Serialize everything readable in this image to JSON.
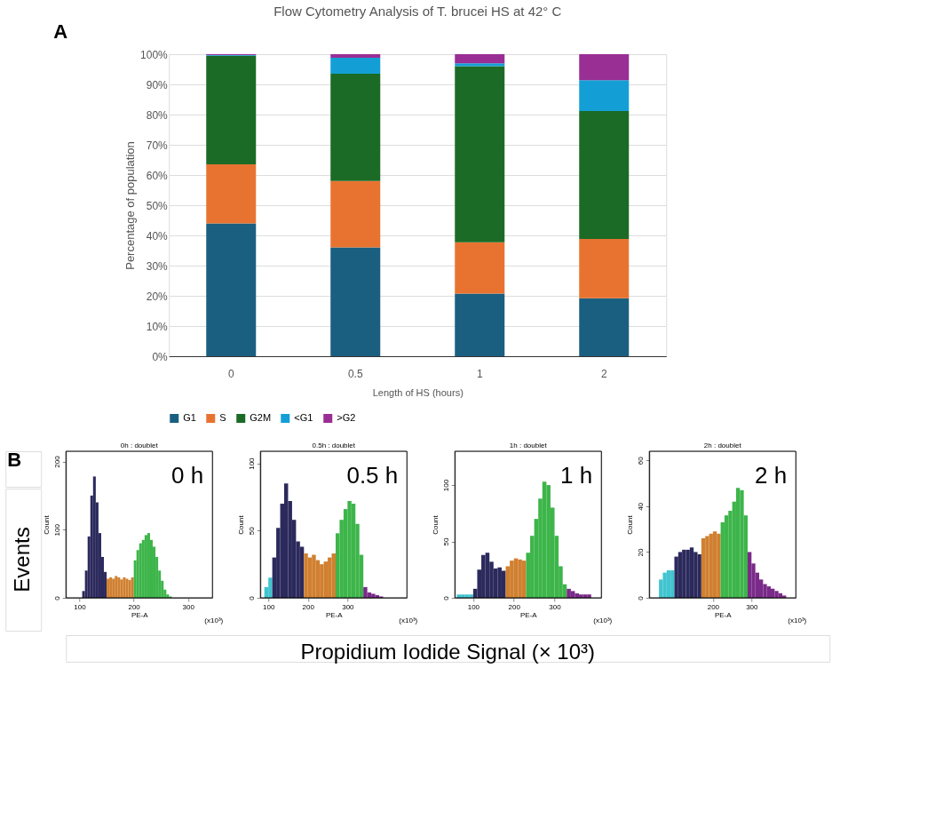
{
  "chart_data": [
    {
      "type": "bar",
      "stacked": true,
      "title": "Flow Cytometry Analysis of T. brucei HS at 42° C",
      "xlabel": "Length of HS (hours)",
      "ylabel": "Percentage of population",
      "categories": [
        "0",
        "0.5",
        "1",
        "2"
      ],
      "series": [
        {
          "name": "G1",
          "color": "#1a5f80",
          "values": [
            44,
            36,
            20.7,
            19.2
          ]
        },
        {
          "name": "S",
          "color": "#e87330",
          "values": [
            19.5,
            22,
            17,
            19.6
          ]
        },
        {
          "name": "G2M",
          "color": "#1b6b26",
          "values": [
            36,
            35.5,
            58.3,
            42.4
          ]
        },
        {
          "name": "<G1",
          "color": "#139fd6",
          "values": [
            0.2,
            5.3,
            1,
            10.2
          ]
        },
        {
          "name": ">G2",
          "color": "#992e94",
          "values": [
            0.3,
            1.2,
            3,
            8.6
          ]
        }
      ],
      "ylim": [
        0,
        100
      ],
      "yticks": [
        {
          "value": 0,
          "label": "0%"
        },
        {
          "value": 10,
          "label": "10%"
        },
        {
          "value": 20,
          "label": "20%"
        },
        {
          "value": 30,
          "label": "30%"
        },
        {
          "value": 40,
          "label": "40%"
        },
        {
          "value": 50,
          "label": "50%"
        },
        {
          "value": 60,
          "label": "60%"
        },
        {
          "value": 70,
          "label": "70%"
        },
        {
          "value": 80,
          "label": "80%"
        },
        {
          "value": 90,
          "label": "90%"
        },
        {
          "value": 100,
          "label": "100%"
        }
      ],
      "grid": "y",
      "legend": "bottom",
      "annotations": [
        "A"
      ]
    },
    {
      "type": "histogram",
      "title": "0h : doublet",
      "xlabel": "PE-A",
      "ylabel": "Count",
      "xlim": [
        75,
        345
      ],
      "xticks": [
        100,
        200,
        300
      ],
      "ylim": [
        0,
        215
      ],
      "yticks": [
        0,
        100,
        200
      ],
      "bins": [
        105,
        110,
        115,
        120,
        125,
        130,
        135,
        140,
        145,
        150,
        155,
        160,
        165,
        170,
        175,
        180,
        185,
        190,
        195,
        200,
        205,
        210,
        215,
        220,
        225,
        230,
        235,
        240,
        245,
        250,
        255,
        260,
        265,
        270
      ],
      "values": [
        10,
        40,
        90,
        150,
        178,
        140,
        95,
        60,
        38,
        28,
        30,
        28,
        32,
        30,
        27,
        30,
        28,
        26,
        30,
        55,
        70,
        80,
        85,
        92,
        95,
        85,
        75,
        60,
        40,
        25,
        12,
        5,
        2
      ],
      "colors": [
        "#2c2a5c",
        "#2c2a5c",
        "#2c2a5c",
        "#2c2a5c",
        "#2c2a5c",
        "#2c2a5c",
        "#2c2a5c",
        "#2c2a5c",
        "#2c2a5c",
        "#d08030",
        "#d08030",
        "#d08030",
        "#d08030",
        "#d08030",
        "#d08030",
        "#d08030",
        "#d08030",
        "#d08030",
        "#d08030",
        "#3db54a",
        "#3db54a",
        "#3db54a",
        "#3db54a",
        "#3db54a",
        "#3db54a",
        "#3db54a",
        "#3db54a",
        "#3db54a",
        "#3db54a",
        "#3db54a",
        "#3db54a",
        "#3db54a",
        "#3db54a"
      ],
      "annotations": [
        "0 h",
        "(x10³)",
        "B",
        "Events",
        "Propidium Iodide Signal (× 10³)"
      ]
    },
    {
      "type": "histogram",
      "title": "0.5h : doublet",
      "xlabel": "PE-A",
      "ylabel": "Count",
      "xlim": [
        80,
        450
      ],
      "xticks": [
        100,
        200,
        300
      ],
      "ylim": [
        0,
        109
      ],
      "yticks": [
        0,
        50,
        100
      ],
      "bins": [
        90,
        100,
        110,
        120,
        130,
        140,
        150,
        160,
        170,
        180,
        190,
        200,
        210,
        220,
        230,
        240,
        250,
        260,
        270,
        280,
        290,
        300,
        310,
        320,
        330,
        340,
        350,
        360,
        370,
        380,
        390
      ],
      "values": [
        8,
        15,
        30,
        52,
        70,
        85,
        72,
        58,
        42,
        38,
        33,
        30,
        32,
        28,
        25,
        27,
        30,
        33,
        48,
        58,
        66,
        72,
        70,
        55,
        32,
        8,
        4,
        3,
        2,
        1
      ],
      "colors": [
        "#40c4d0",
        "#40c4d0",
        "#2c2a5c",
        "#2c2a5c",
        "#2c2a5c",
        "#2c2a5c",
        "#2c2a5c",
        "#2c2a5c",
        "#2c2a5c",
        "#2c2a5c",
        "#d08030",
        "#d08030",
        "#d08030",
        "#d08030",
        "#d08030",
        "#d08030",
        "#d08030",
        "#d08030",
        "#3db54a",
        "#3db54a",
        "#3db54a",
        "#3db54a",
        "#3db54a",
        "#3db54a",
        "#3db54a",
        "#7a2a88",
        "#7a2a88",
        "#7a2a88",
        "#7a2a88",
        "#7a2a88"
      ],
      "annotations": [
        "0.5 h",
        "(x10³)"
      ]
    },
    {
      "type": "histogram",
      "title": "1h : doublet",
      "xlabel": "PE-A",
      "ylabel": "Count",
      "xlim": [
        55,
        415
      ],
      "xticks": [
        100,
        200,
        300
      ],
      "ylim": [
        0,
        130
      ],
      "yticks": [
        0,
        50,
        100
      ],
      "bins": [
        60,
        70,
        80,
        90,
        100,
        110,
        120,
        130,
        140,
        150,
        160,
        170,
        180,
        190,
        200,
        210,
        220,
        230,
        240,
        250,
        260,
        270,
        280,
        290,
        300,
        310,
        320,
        330,
        340,
        350,
        360,
        370,
        380,
        390
      ],
      "values": [
        3,
        3,
        3,
        3,
        8,
        25,
        38,
        40,
        32,
        26,
        27,
        24,
        28,
        33,
        35,
        34,
        33,
        40,
        55,
        70,
        88,
        103,
        100,
        80,
        55,
        28,
        12,
        8,
        6,
        4,
        3,
        3,
        3
      ],
      "colors": [
        "#40c4d0",
        "#40c4d0",
        "#40c4d0",
        "#40c4d0",
        "#2c2a5c",
        "#2c2a5c",
        "#2c2a5c",
        "#2c2a5c",
        "#2c2a5c",
        "#2c2a5c",
        "#2c2a5c",
        "#2c2a5c",
        "#d08030",
        "#d08030",
        "#d08030",
        "#d08030",
        "#d08030",
        "#3db54a",
        "#3db54a",
        "#3db54a",
        "#3db54a",
        "#3db54a",
        "#3db54a",
        "#3db54a",
        "#3db54a",
        "#3db54a",
        "#3db54a",
        "#7a2a88",
        "#7a2a88",
        "#7a2a88",
        "#7a2a88",
        "#7a2a88",
        "#7a2a88"
      ],
      "annotations": [
        "1 h",
        "(x10³)"
      ]
    },
    {
      "type": "histogram",
      "title": "2h : doublet",
      "xlabel": "PE-A",
      "ylabel": "Count",
      "xlim": [
        35,
        415
      ],
      "xticks": [
        200,
        300
      ],
      "ylim": [
        0,
        64
      ],
      "yticks": [
        0,
        20,
        40,
        60
      ],
      "bins": [
        60,
        70,
        80,
        90,
        100,
        110,
        120,
        130,
        140,
        150,
        160,
        170,
        180,
        190,
        200,
        210,
        220,
        230,
        240,
        250,
        260,
        270,
        280,
        290,
        300,
        310,
        320,
        330,
        340,
        350,
        360,
        370,
        380,
        390
      ],
      "values": [
        8,
        11,
        12,
        12,
        18,
        20,
        21,
        21,
        22,
        20,
        19,
        26,
        27,
        28,
        29,
        28,
        33,
        36,
        38,
        42,
        48,
        47,
        36,
        20,
        15,
        11,
        8,
        6,
        5,
        4,
        3,
        2,
        1
      ],
      "colors": [
        "#40c4d0",
        "#40c4d0",
        "#40c4d0",
        "#40c4d0",
        "#2c2a5c",
        "#2c2a5c",
        "#2c2a5c",
        "#2c2a5c",
        "#2c2a5c",
        "#2c2a5c",
        "#2c2a5c",
        "#d08030",
        "#d08030",
        "#d08030",
        "#d08030",
        "#d08030",
        "#3db54a",
        "#3db54a",
        "#3db54a",
        "#3db54a",
        "#3db54a",
        "#3db54a",
        "#3db54a",
        "#7a2a88",
        "#7a2a88",
        "#7a2a88",
        "#7a2a88",
        "#7a2a88",
        "#7a2a88",
        "#7a2a88",
        "#7a2a88",
        "#7a2a88",
        "#7a2a88"
      ],
      "annotations": [
        "2 h",
        "(x10³)"
      ]
    }
  ]
}
